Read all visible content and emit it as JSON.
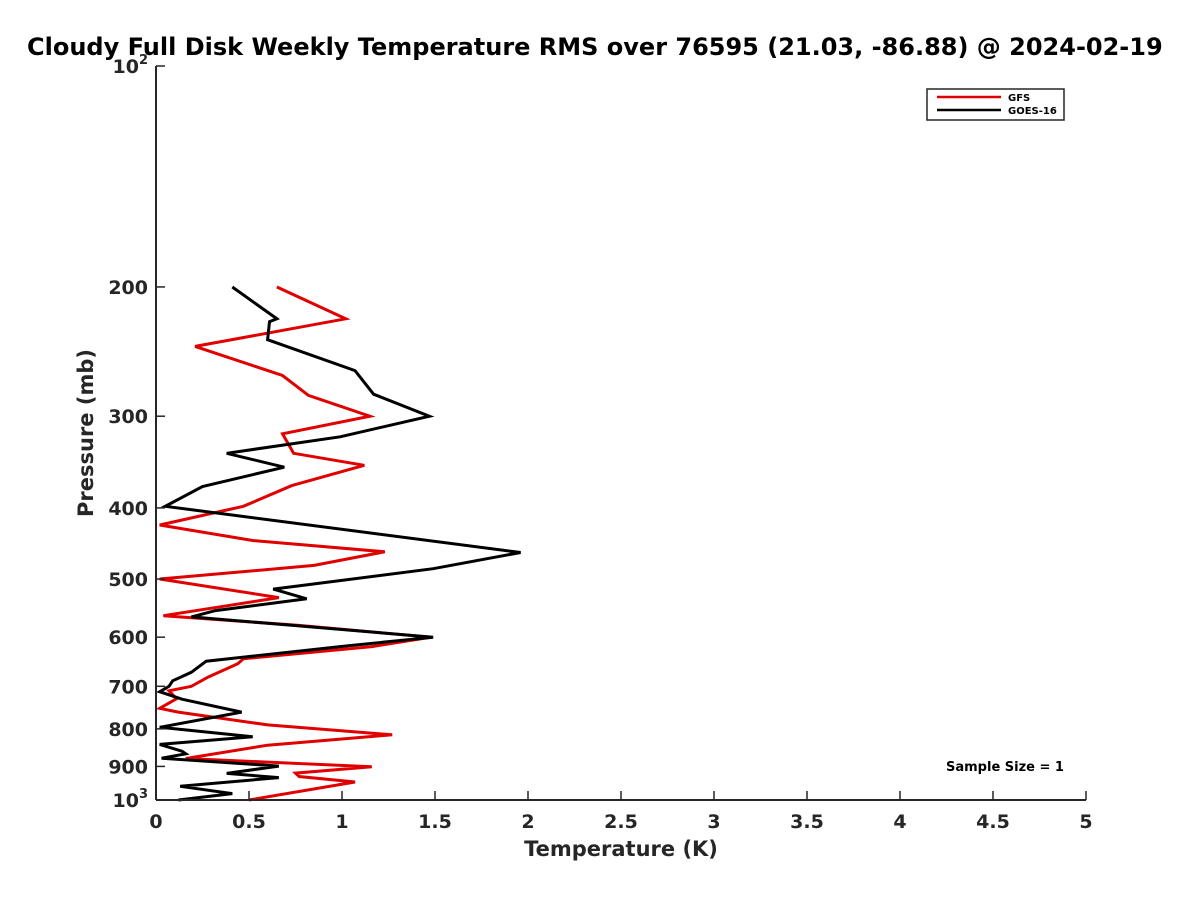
{
  "chart_data": {
    "type": "line",
    "title": "Cloudy Full Disk Weekly Temperature RMS over 76595 (21.03, -86.88) @ 2024-02-19",
    "xlabel": "Temperature (K)",
    "ylabel": "Pressure (mb)",
    "xlim": [
      0,
      5
    ],
    "ylim": [
      100,
      1000
    ],
    "y_scale": "log",
    "y_reversed": true,
    "x_ticks": [
      "0",
      "0.5",
      "1",
      "1.5",
      "2",
      "2.5",
      "3",
      "3.5",
      "4",
      "4.5",
      "5"
    ],
    "y_ticks": [
      {
        "value": 100,
        "base": "10",
        "exp": "2"
      },
      {
        "value": 200,
        "label": "200"
      },
      {
        "value": 300,
        "label": "300"
      },
      {
        "value": 400,
        "label": "400"
      },
      {
        "value": 500,
        "label": "500"
      },
      {
        "value": 600,
        "label": "600"
      },
      {
        "value": 700,
        "label": "700"
      },
      {
        "value": 800,
        "label": "800"
      },
      {
        "value": 900,
        "label": "900"
      },
      {
        "value": 1000,
        "base": "10",
        "exp": "3"
      }
    ],
    "grid": false,
    "legend_position": "top-right",
    "annotation": "Sample Size = 1",
    "series": [
      {
        "name": "GFS",
        "color": "#e00000",
        "points": [
          [
            0.65,
            200
          ],
          [
            1.02,
            221
          ],
          [
            0.21,
            241
          ],
          [
            0.68,
            264
          ],
          [
            0.82,
            281
          ],
          [
            1.15,
            300
          ],
          [
            0.68,
            317
          ],
          [
            0.74,
            337
          ],
          [
            1.12,
            350
          ],
          [
            0.73,
            373
          ],
          [
            0.47,
            398
          ],
          [
            0.02,
            422
          ],
          [
            0.52,
            443
          ],
          [
            1.23,
            459
          ],
          [
            0.85,
            479
          ],
          [
            0.02,
            500
          ],
          [
            0.66,
            530
          ],
          [
            0.04,
            561
          ],
          [
            0.76,
            578
          ],
          [
            1.48,
            600
          ],
          [
            1.16,
            618
          ],
          [
            0.47,
            642
          ],
          [
            0.44,
            652
          ],
          [
            0.28,
            680
          ],
          [
            0.19,
            700
          ],
          [
            0.07,
            710
          ],
          [
            0.11,
            728
          ],
          [
            0.02,
            750
          ],
          [
            0.12,
            759
          ],
          [
            0.6,
            790
          ],
          [
            1.27,
            815
          ],
          [
            0.6,
            842
          ],
          [
            0.16,
            878
          ],
          [
            1.16,
            901
          ],
          [
            0.75,
            919
          ],
          [
            0.77,
            929
          ],
          [
            1.07,
            945
          ],
          [
            0.5,
            1000
          ]
        ]
      },
      {
        "name": "GOES-16",
        "color": "#000000",
        "points": [
          [
            0.41,
            200
          ],
          [
            0.65,
            221
          ],
          [
            0.61,
            223
          ],
          [
            0.6,
            236
          ],
          [
            1.07,
            260
          ],
          [
            1.17,
            280
          ],
          [
            1.47,
            300
          ],
          [
            0.99,
            320
          ],
          [
            0.38,
            337
          ],
          [
            0.69,
            352
          ],
          [
            0.25,
            374
          ],
          [
            0.05,
            398
          ],
          [
            1.96,
            460
          ],
          [
            1.49,
            484
          ],
          [
            0.63,
            516
          ],
          [
            0.81,
            532
          ],
          [
            0.32,
            552
          ],
          [
            0.19,
            563
          ],
          [
            1.49,
            600
          ],
          [
            1.04,
            616
          ],
          [
            0.27,
            647
          ],
          [
            0.19,
            670
          ],
          [
            0.09,
            688
          ],
          [
            0.07,
            700
          ],
          [
            0.02,
            712
          ],
          [
            0.14,
            729
          ],
          [
            0.46,
            759
          ],
          [
            0.02,
            796
          ],
          [
            0.52,
            820
          ],
          [
            0.02,
            840
          ],
          [
            0.14,
            858
          ],
          [
            0.16,
            865
          ],
          [
            0.03,
            877
          ],
          [
            0.66,
            899
          ],
          [
            0.38,
            920
          ],
          [
            0.66,
            932
          ],
          [
            0.13,
            958
          ],
          [
            0.41,
            980
          ],
          [
            0.12,
            1000
          ]
        ]
      }
    ]
  }
}
